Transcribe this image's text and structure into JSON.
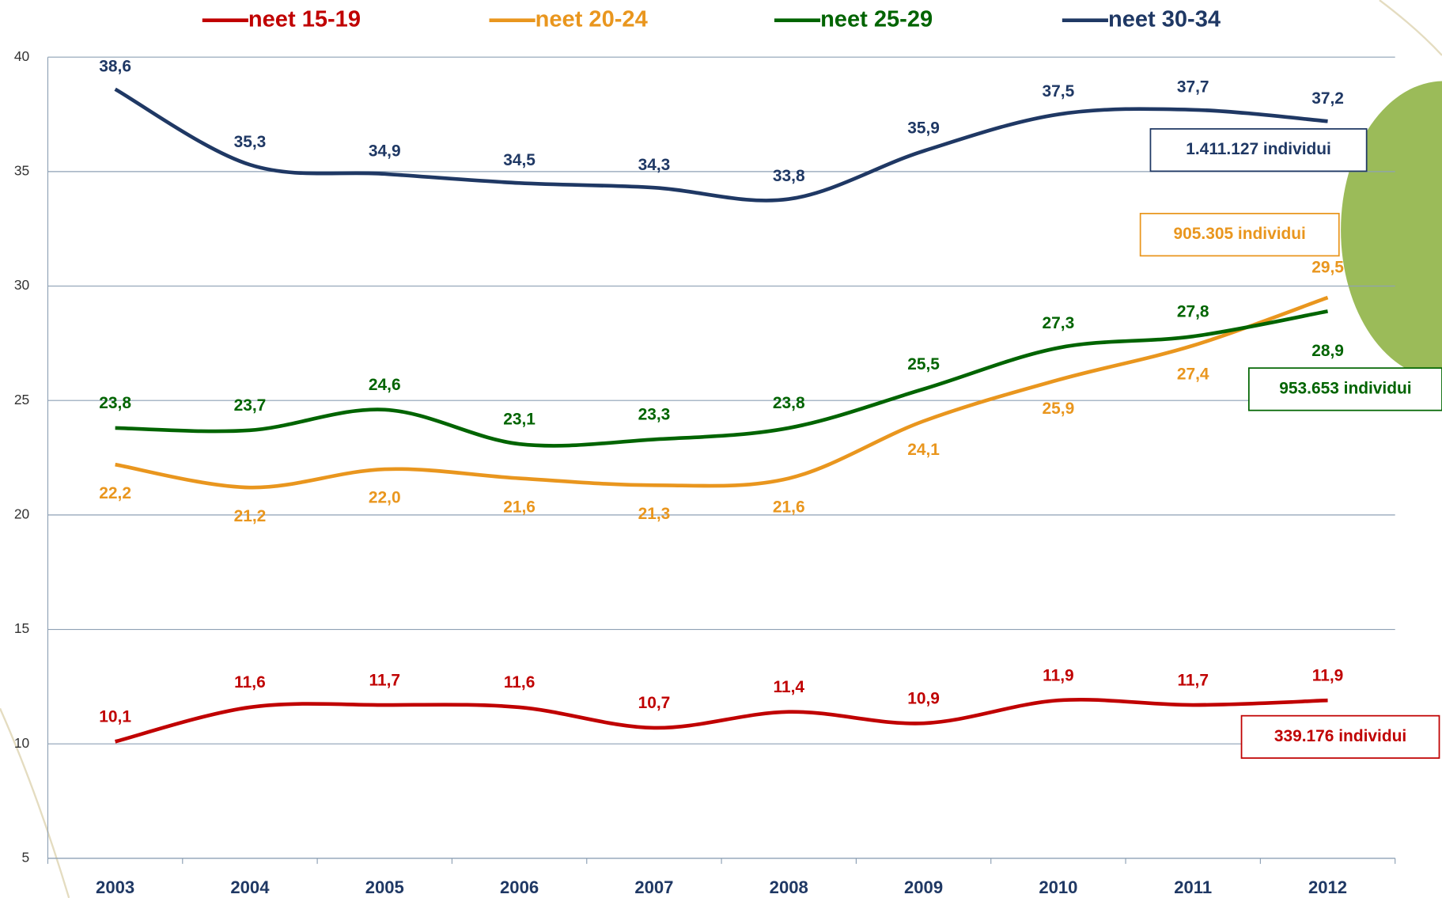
{
  "chart_data": {
    "type": "line",
    "categories": [
      "2003",
      "2004",
      "2005",
      "2006",
      "2007",
      "2008",
      "2009",
      "2010",
      "2011",
      "2012"
    ],
    "ylim": [
      5,
      40
    ],
    "yticks": [
      5,
      10,
      15,
      20,
      25,
      30,
      35,
      40
    ],
    "grid": true,
    "series": [
      {
        "name": "neet 15-19",
        "color": "#c00000",
        "values": [
          10.1,
          11.6,
          11.7,
          11.6,
          10.7,
          11.4,
          10.9,
          11.9,
          11.7,
          11.9
        ],
        "value_labels": [
          "10,1",
          "11,6",
          "11,7",
          "11,6",
          "10,7",
          "11,4",
          "10,9",
          "11,9",
          "11,7",
          "11,9"
        ],
        "annotation": "339.176 individui"
      },
      {
        "name": "neet 20-24",
        "color": "#e9961e",
        "values": [
          22.2,
          21.2,
          22.0,
          21.6,
          21.3,
          21.6,
          24.1,
          25.9,
          27.4,
          29.5
        ],
        "value_labels": [
          "22,2",
          "21,2",
          "22,0",
          "21,6",
          "21,3",
          "21,6",
          "24,1",
          "25,9",
          "27,4",
          "29,5"
        ],
        "annotation": "905.305 individui"
      },
      {
        "name": "neet 25-29",
        "color": "#006400",
        "values": [
          23.8,
          23.7,
          24.6,
          23.1,
          23.3,
          23.8,
          25.5,
          27.3,
          27.8,
          28.9
        ],
        "value_labels": [
          "23,8",
          "23,7",
          "24,6",
          "23,1",
          "23,3",
          "23,8",
          "25,5",
          "27,3",
          "27,8",
          "28,9"
        ],
        "annotation": "953.653 individui"
      },
      {
        "name": "neet 30-34",
        "color": "#1f3864",
        "values": [
          38.6,
          35.3,
          34.9,
          34.5,
          34.3,
          33.8,
          35.9,
          37.5,
          37.7,
          37.2
        ],
        "value_labels": [
          "38,6",
          "35,3",
          "34,9",
          "34,5",
          "34,3",
          "33,8",
          "35,9",
          "37,5",
          "37,7",
          "37,2"
        ],
        "annotation": "1.411.127 individui"
      }
    ]
  }
}
